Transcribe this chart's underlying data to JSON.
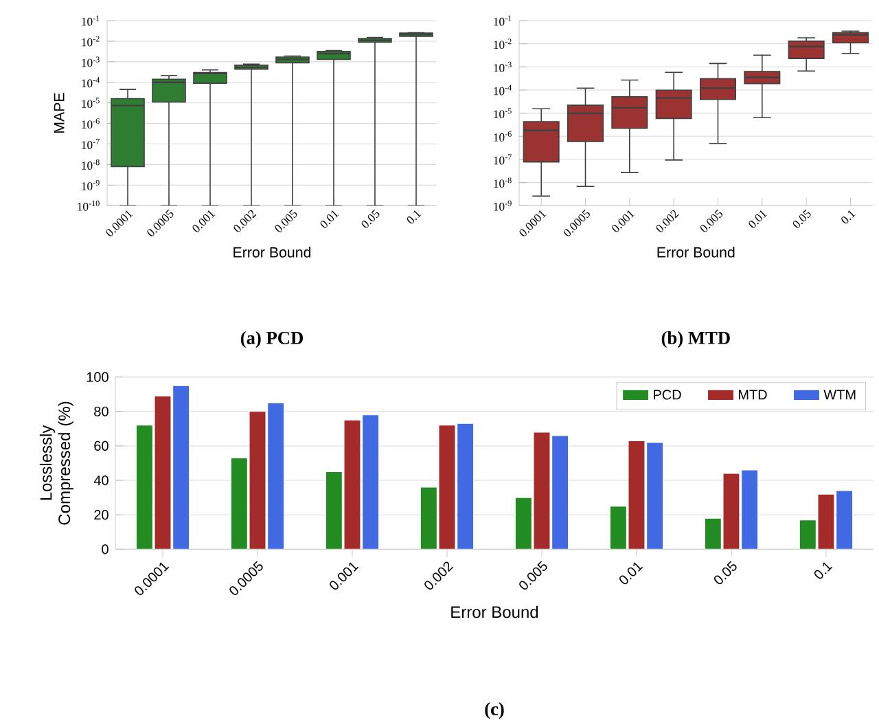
{
  "chart_data": [
    {
      "type": "box",
      "title": "(a) PCD",
      "xlabel": "Error Bound",
      "ylabel": "MAPE",
      "color": "#2e7d32",
      "log": true,
      "grid": "y",
      "categories": [
        "0.0001",
        "0.0005",
        "0.001",
        "0.002",
        "0.005",
        "0.01",
        "0.05",
        "0.1"
      ],
      "boxes": [
        {
          "low": 1e-10,
          "q1": 8e-09,
          "median": 7.4e-06,
          "q3": 1.6e-05,
          "high": 4.5e-05
        },
        {
          "low": 1e-10,
          "q1": 1.1e-05,
          "median": 0.0001,
          "q3": 0.00014,
          "high": 0.00021
        },
        {
          "low": 1e-10,
          "q1": 9e-05,
          "median": 0.00027,
          "q3": 0.0003,
          "high": 0.0004
        },
        {
          "low": 1e-10,
          "q1": 0.00043,
          "median": 0.00053,
          "q3": 0.00068,
          "high": 0.00076
        },
        {
          "low": 1e-10,
          "q1": 0.00089,
          "median": 0.0013,
          "q3": 0.0017,
          "high": 0.0019
        },
        {
          "low": 1e-10,
          "q1": 0.0013,
          "median": 0.0025,
          "q3": 0.0032,
          "high": 0.0035
        },
        {
          "low": 1e-10,
          "q1": 0.0089,
          "median": 0.011,
          "q3": 0.0135,
          "high": 0.015
        },
        {
          "low": 1e-10,
          "q1": 0.017,
          "median": 0.021,
          "q3": 0.025,
          "high": 0.026
        }
      ],
      "ylim": [
        1e-10,
        0.1
      ],
      "yticks": [
        {
          "value": 1e-10,
          "label": "10$^{-10}$"
        },
        {
          "value": 1e-09,
          "label": "10$^{-9}$"
        },
        {
          "value": 1e-08,
          "label": "10$^{-8}$"
        },
        {
          "value": 1e-07,
          "label": "10$^{-7}$"
        },
        {
          "value": 1e-06,
          "label": "10$^{-6}$"
        },
        {
          "value": 1e-05,
          "label": "10$^{-5}$"
        },
        {
          "value": 0.0001,
          "label": "10$^{-4}$"
        },
        {
          "value": 0.001,
          "label": "10$^{-3}$"
        },
        {
          "value": 0.01,
          "label": "10$^{-2}$"
        },
        {
          "value": 0.1,
          "label": "10$^{-1}$"
        }
      ]
    },
    {
      "type": "box",
      "title": "(b) MTD",
      "xlabel": "Error Bound",
      "color": "#9c3333",
      "log": true,
      "grid": "y",
      "categories": [
        "0.0001",
        "0.0005",
        "0.001",
        "0.002",
        "0.005",
        "0.01",
        "0.05",
        "0.1"
      ],
      "boxes": [
        {
          "low": 2.6e-09,
          "q1": 7.8e-08,
          "median": 1.8e-06,
          "q3": 4.3e-06,
          "high": 1.55e-05
        },
        {
          "low": 6.8e-09,
          "q1": 5.9e-07,
          "median": 9.8e-06,
          "q3": 2.2e-05,
          "high": 0.00012
        },
        {
          "low": 2.7e-08,
          "q1": 2.2e-06,
          "median": 1.7e-05,
          "q3": 5.1e-05,
          "high": 0.00027
        },
        {
          "low": 9.4e-08,
          "q1": 5.9e-06,
          "median": 4.5e-05,
          "q3": 9.8e-05,
          "high": 0.00058
        },
        {
          "low": 4.9e-07,
          "q1": 3.9e-05,
          "median": 0.00012,
          "q3": 0.00031,
          "high": 0.0014
        },
        {
          "low": 6.4e-06,
          "q1": 0.00019,
          "median": 0.00035,
          "q3": 0.00063,
          "high": 0.0032
        },
        {
          "low": 0.00066,
          "q1": 0.0023,
          "median": 0.0076,
          "q3": 0.013,
          "high": 0.018
        },
        {
          "low": 0.0038,
          "q1": 0.011,
          "median": 0.024,
          "q3": 0.03,
          "high": 0.035
        }
      ],
      "ylim": [
        1e-09,
        0.1
      ],
      "yticks": [
        {
          "value": 1e-09,
          "label": "10$^{-9}$"
        },
        {
          "value": 1e-08,
          "label": "10$^{-8}$"
        },
        {
          "value": 1e-07,
          "label": "10$^{-7}$"
        },
        {
          "value": 1e-06,
          "label": "10$^{-6}$"
        },
        {
          "value": 1e-05,
          "label": "10$^{-5}$"
        },
        {
          "value": 0.0001,
          "label": "10$^{-4}$"
        },
        {
          "value": 0.001,
          "label": "10$^{-3}$"
        },
        {
          "value": 0.01,
          "label": "10$^{-2}$"
        },
        {
          "value": 0.1,
          "label": "10$^{-1}$"
        }
      ]
    },
    {
      "type": "bar",
      "title": "(c)",
      "xlabel": "Error Bound",
      "ylabel": "Losslessly Compressed (%)",
      "grid": "y",
      "legend": "top right",
      "categories": [
        "0.0001",
        "0.0005",
        "0.001",
        "0.002",
        "0.005",
        "0.01",
        "0.05",
        "0.1"
      ],
      "series": [
        {
          "name": "PCD",
          "color": "#228b22",
          "values": [
            72,
            53,
            45,
            36,
            30,
            25,
            18,
            17
          ]
        },
        {
          "name": "MTD",
          "color": "#a52a2a",
          "values": [
            89,
            80,
            75,
            72,
            68,
            63,
            44,
            32
          ]
        },
        {
          "name": "WTM",
          "color": "#4169e1",
          "values": [
            95,
            85,
            78,
            73,
            66,
            62,
            46,
            34
          ]
        }
      ],
      "ylim": [
        0,
        100
      ],
      "yticks": [
        0,
        20,
        40,
        60,
        80,
        100
      ]
    }
  ]
}
